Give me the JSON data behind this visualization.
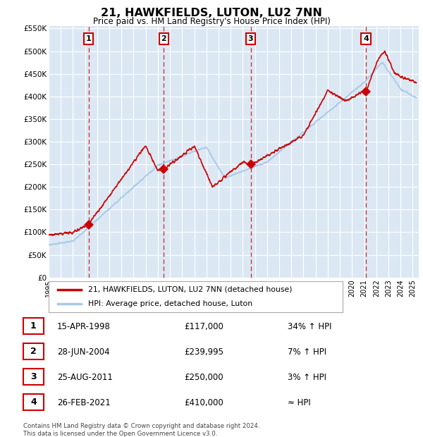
{
  "title": "21, HAWKFIELDS, LUTON, LU2 7NN",
  "subtitle": "Price paid vs. HM Land Registry's House Price Index (HPI)",
  "bg_color": "#dbe8f4",
  "fig_color": "#ffffff",
  "hpi_color": "#a8c8e8",
  "price_color": "#cc0000",
  "marker_color": "#cc0000",
  "purchases": [
    {
      "num": 1,
      "year": 1998.29,
      "price": 117000,
      "date": "15-APR-1998",
      "hpi_pct": "34% ↑ HPI"
    },
    {
      "num": 2,
      "year": 2004.49,
      "price": 239995,
      "date": "28-JUN-2004",
      "hpi_pct": "7% ↑ HPI"
    },
    {
      "num": 3,
      "year": 2011.65,
      "price": 250000,
      "date": "25-AUG-2011",
      "hpi_pct": "3% ↑ HPI"
    },
    {
      "num": 4,
      "year": 2021.15,
      "price": 410000,
      "date": "26-FEB-2021",
      "hpi_pct": "≈ HPI"
    }
  ],
  "x_start": 1995,
  "x_end": 2025.5,
  "y_min": 0,
  "y_max": 550000,
  "y_ticks": [
    0,
    50000,
    100000,
    150000,
    200000,
    250000,
    300000,
    350000,
    400000,
    450000,
    500000,
    550000
  ],
  "x_ticks": [
    1995,
    1996,
    1997,
    1998,
    1999,
    2000,
    2001,
    2002,
    2003,
    2004,
    2005,
    2006,
    2007,
    2008,
    2009,
    2010,
    2011,
    2012,
    2013,
    2014,
    2015,
    2016,
    2017,
    2018,
    2019,
    2020,
    2021,
    2022,
    2023,
    2024,
    2025
  ],
  "footer": "Contains HM Land Registry data © Crown copyright and database right 2024.\nThis data is licensed under the Open Government Licence v3.0.",
  "legend_line1": "21, HAWKFIELDS, LUTON, LU2 7NN (detached house)",
  "legend_line2": "HPI: Average price, detached house, Luton"
}
